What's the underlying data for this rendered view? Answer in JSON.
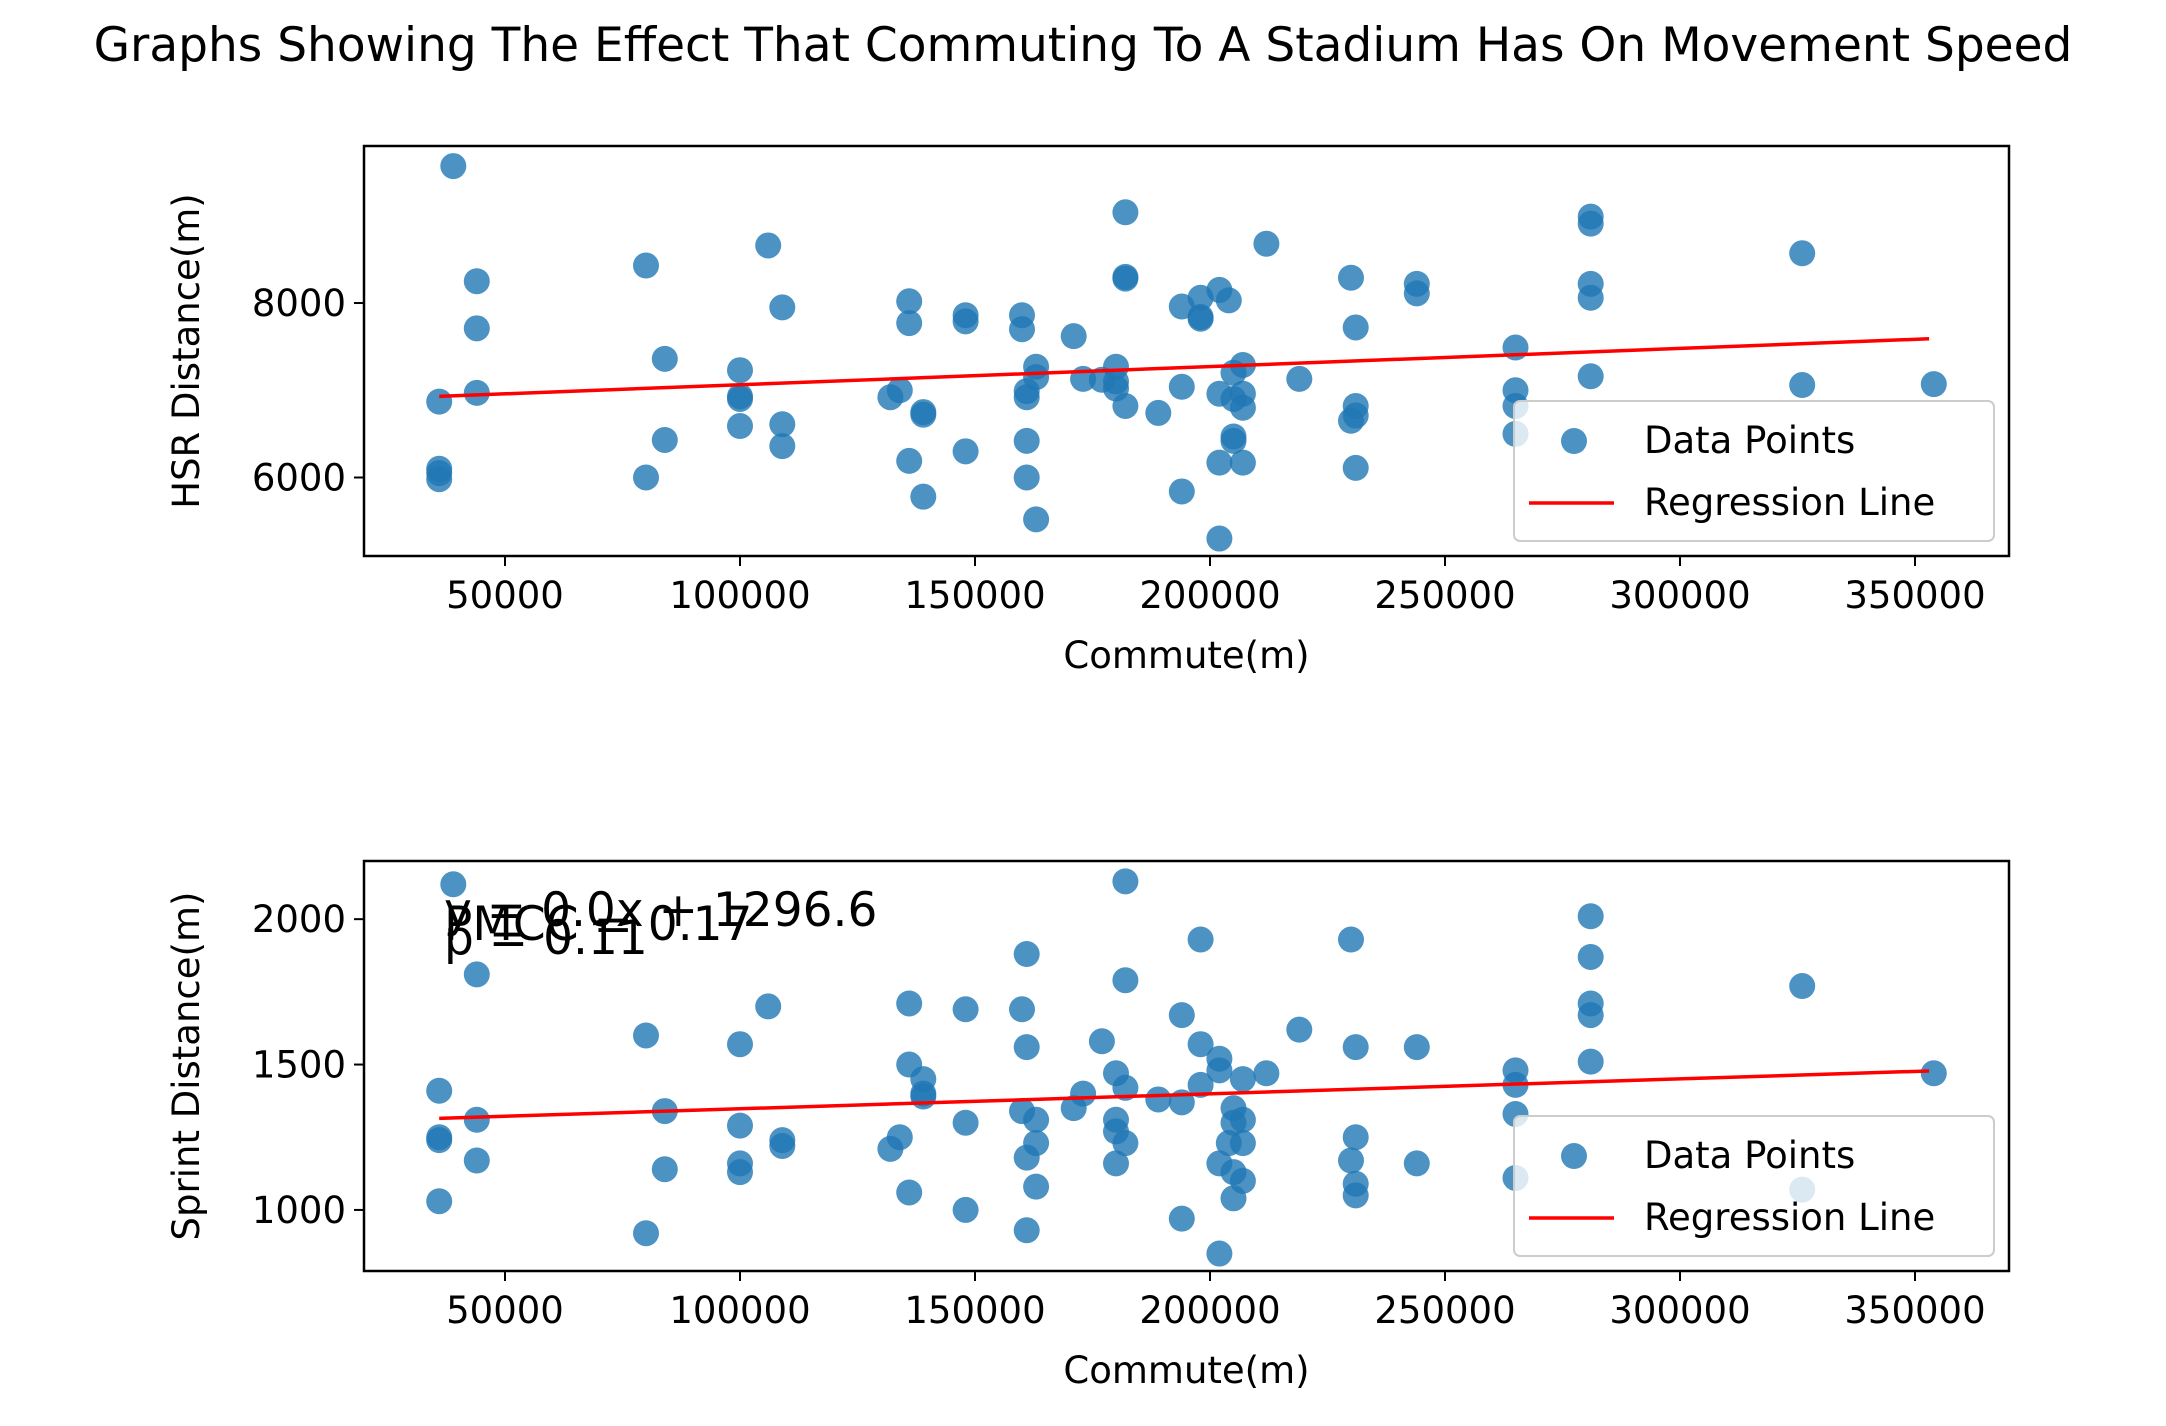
{
  "figure": {
    "title": "Graphs Showing The Effect That Commuting To A Stadium Has On Movement Speed"
  },
  "colors": {
    "points": "#1f77b4",
    "regression": "#ff0000",
    "axes": "#000000",
    "legend_border": "#cccccc"
  },
  "chart_data": [
    {
      "type": "scatter",
      "title": "",
      "xlabel": "Commute(m)",
      "ylabel": "HSR Distance(m)",
      "xlim": [
        20000,
        370000
      ],
      "ylim": [
        5100,
        9800
      ],
      "xticks": [
        50000,
        100000,
        150000,
        200000,
        250000,
        300000,
        350000
      ],
      "xtick_labels": [
        "50000",
        "100000",
        "150000",
        "200000",
        "250000",
        "300000",
        "350000"
      ],
      "yticks": [
        6000,
        8000
      ],
      "ytick_labels": [
        "6000",
        "8000"
      ],
      "grid": false,
      "legend": {
        "placement": "lower right",
        "entries": [
          "Data Points",
          "Regression Line"
        ]
      },
      "annotations": [],
      "series": [
        {
          "name": "Data Points",
          "kind": "scatter",
          "points": [
            [
              36000,
              6870
            ],
            [
              36000,
              6100
            ],
            [
              36000,
              6050
            ],
            [
              36000,
              5980
            ],
            [
              39000,
              9570
            ],
            [
              44000,
              8250
            ],
            [
              44000,
              7710
            ],
            [
              44000,
              6970
            ],
            [
              80000,
              8430
            ],
            [
              80000,
              6000
            ],
            [
              84000,
              7360
            ],
            [
              84000,
              6430
            ],
            [
              100000,
              7230
            ],
            [
              100000,
              6930
            ],
            [
              100000,
              6900
            ],
            [
              100000,
              6590
            ],
            [
              106000,
              8660
            ],
            [
              109000,
              7950
            ],
            [
              109000,
              6610
            ],
            [
              109000,
              6360
            ],
            [
              132000,
              6920
            ],
            [
              134000,
              7000
            ],
            [
              136000,
              8020
            ],
            [
              136000,
              7770
            ],
            [
              136000,
              6190
            ],
            [
              139000,
              6750
            ],
            [
              139000,
              6720
            ],
            [
              139000,
              5780
            ],
            [
              148000,
              7860
            ],
            [
              148000,
              7790
            ],
            [
              148000,
              6300
            ],
            [
              160000,
              7860
            ],
            [
              160000,
              7700
            ],
            [
              161000,
              6990
            ],
            [
              161000,
              6920
            ],
            [
              161000,
              6420
            ],
            [
              161000,
              6000
            ],
            [
              163000,
              7270
            ],
            [
              163000,
              7150
            ],
            [
              163000,
              5520
            ],
            [
              171000,
              7620
            ],
            [
              173000,
              7130
            ],
            [
              177000,
              7120
            ],
            [
              180000,
              7270
            ],
            [
              180000,
              7100
            ],
            [
              180000,
              7020
            ],
            [
              182000,
              9040
            ],
            [
              182000,
              8300
            ],
            [
              182000,
              8280
            ],
            [
              182000,
              6820
            ],
            [
              189000,
              6740
            ],
            [
              194000,
              7960
            ],
            [
              194000,
              7040
            ],
            [
              194000,
              5840
            ],
            [
              198000,
              8060
            ],
            [
              198000,
              7840
            ],
            [
              198000,
              7820
            ],
            [
              202000,
              8150
            ],
            [
              202000,
              6960
            ],
            [
              202000,
              6170
            ],
            [
              202000,
              5300
            ],
            [
              204000,
              8030
            ],
            [
              205000,
              7200
            ],
            [
              205000,
              6900
            ],
            [
              205000,
              6470
            ],
            [
              205000,
              6420
            ],
            [
              207000,
              7290
            ],
            [
              207000,
              6960
            ],
            [
              207000,
              6800
            ],
            [
              207000,
              6170
            ],
            [
              212000,
              8680
            ],
            [
              219000,
              7130
            ],
            [
              230000,
              8290
            ],
            [
              230000,
              6650
            ],
            [
              231000,
              7720
            ],
            [
              231000,
              6820
            ],
            [
              231000,
              6710
            ],
            [
              231000,
              6110
            ],
            [
              244000,
              8220
            ],
            [
              244000,
              8110
            ],
            [
              265000,
              7490
            ],
            [
              265000,
              7000
            ],
            [
              265000,
              6820
            ],
            [
              265000,
              6500
            ],
            [
              281000,
              8990
            ],
            [
              281000,
              8910
            ],
            [
              281000,
              8220
            ],
            [
              281000,
              8060
            ],
            [
              281000,
              7160
            ],
            [
              326000,
              8570
            ],
            [
              326000,
              7060
            ],
            [
              354000,
              7070
            ]
          ]
        },
        {
          "name": "Regression Line",
          "kind": "line",
          "points": [
            [
              36000,
              6930
            ],
            [
              353000,
              7590
            ]
          ]
        }
      ]
    },
    {
      "type": "scatter",
      "title": "",
      "xlabel": "Commute(m)",
      "ylabel": "Sprint Distance(m)",
      "xlim": [
        20000,
        370000
      ],
      "ylim": [
        790,
        2200
      ],
      "xticks": [
        50000,
        100000,
        150000,
        200000,
        250000,
        300000,
        350000
      ],
      "xtick_labels": [
        "50000",
        "100000",
        "150000",
        "200000",
        "250000",
        "300000",
        "350000"
      ],
      "yticks": [
        1000,
        1500,
        2000
      ],
      "ytick_labels": [
        "1000",
        "1500",
        "2000"
      ],
      "grid": false,
      "legend": {
        "placement": "lower right",
        "entries": [
          "Data Points",
          "Regression Line"
        ]
      },
      "annotations": [
        "y = 0.0x + 1296.6",
        "PMCC = 0.17",
        "p = 0.11"
      ],
      "series": [
        {
          "name": "Data Points",
          "kind": "scatter",
          "points": [
            [
              36000,
              1410
            ],
            [
              36000,
              1250
            ],
            [
              36000,
              1240
            ],
            [
              36000,
              1030
            ],
            [
              39000,
              2120
            ],
            [
              44000,
              1810
            ],
            [
              44000,
              1310
            ],
            [
              44000,
              1170
            ],
            [
              80000,
              1600
            ],
            [
              80000,
              920
            ],
            [
              84000,
              1340
            ],
            [
              84000,
              1140
            ],
            [
              100000,
              1570
            ],
            [
              100000,
              1290
            ],
            [
              100000,
              1160
            ],
            [
              100000,
              1130
            ],
            [
              106000,
              1700
            ],
            [
              109000,
              1240
            ],
            [
              109000,
              1220
            ],
            [
              132000,
              1210
            ],
            [
              134000,
              1250
            ],
            [
              136000,
              1710
            ],
            [
              136000,
              1500
            ],
            [
              136000,
              1060
            ],
            [
              139000,
              1450
            ],
            [
              139000,
              1400
            ],
            [
              139000,
              1390
            ],
            [
              148000,
              1690
            ],
            [
              148000,
              1300
            ],
            [
              148000,
              1000
            ],
            [
              160000,
              1690
            ],
            [
              160000,
              1340
            ],
            [
              161000,
              1880
            ],
            [
              161000,
              1560
            ],
            [
              161000,
              1180
            ],
            [
              161000,
              930
            ],
            [
              163000,
              1310
            ],
            [
              163000,
              1230
            ],
            [
              163000,
              1080
            ],
            [
              171000,
              1350
            ],
            [
              173000,
              1400
            ],
            [
              177000,
              1580
            ],
            [
              180000,
              1470
            ],
            [
              180000,
              1310
            ],
            [
              180000,
              1270
            ],
            [
              180000,
              1160
            ],
            [
              182000,
              2130
            ],
            [
              182000,
              1790
            ],
            [
              182000,
              1420
            ],
            [
              182000,
              1230
            ],
            [
              189000,
              1380
            ],
            [
              194000,
              1670
            ],
            [
              194000,
              1370
            ],
            [
              194000,
              970
            ],
            [
              198000,
              1930
            ],
            [
              198000,
              1570
            ],
            [
              198000,
              1430
            ],
            [
              202000,
              1520
            ],
            [
              202000,
              1480
            ],
            [
              202000,
              1160
            ],
            [
              202000,
              850
            ],
            [
              204000,
              1230
            ],
            [
              205000,
              1350
            ],
            [
              205000,
              1300
            ],
            [
              205000,
              1130
            ],
            [
              205000,
              1040
            ],
            [
              207000,
              1450
            ],
            [
              207000,
              1310
            ],
            [
              207000,
              1230
            ],
            [
              207000,
              1100
            ],
            [
              212000,
              1470
            ],
            [
              219000,
              1620
            ],
            [
              230000,
              1930
            ],
            [
              230000,
              1170
            ],
            [
              231000,
              1560
            ],
            [
              231000,
              1250
            ],
            [
              231000,
              1090
            ],
            [
              231000,
              1050
            ],
            [
              244000,
              1560
            ],
            [
              244000,
              1160
            ],
            [
              265000,
              1480
            ],
            [
              265000,
              1430
            ],
            [
              265000,
              1330
            ],
            [
              265000,
              1110
            ],
            [
              281000,
              2010
            ],
            [
              281000,
              1870
            ],
            [
              281000,
              1710
            ],
            [
              281000,
              1670
            ],
            [
              281000,
              1510
            ],
            [
              326000,
              1770
            ],
            [
              326000,
              1070
            ],
            [
              354000,
              1470
            ]
          ]
        },
        {
          "name": "Regression Line",
          "kind": "line",
          "points": [
            [
              36000,
              1315
            ],
            [
              353000,
              1478
            ]
          ]
        }
      ]
    }
  ]
}
